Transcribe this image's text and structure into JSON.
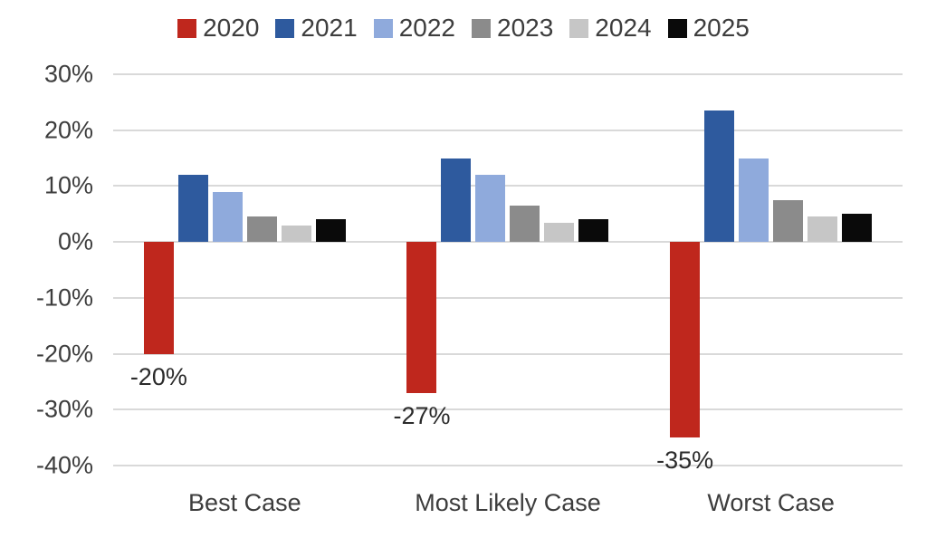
{
  "chart_data": {
    "type": "bar",
    "title": "",
    "categories": [
      "Best Case",
      "Most Likely Case",
      "Worst Case"
    ],
    "series": [
      {
        "name": "2020",
        "color": "#bf271d",
        "values": [
          -20,
          -27,
          -35
        ],
        "data_labels": [
          "-20%",
          "-27%",
          "-35%"
        ]
      },
      {
        "name": "2021",
        "color": "#2e5a9e",
        "values": [
          12,
          15,
          23.5
        ],
        "data_labels": null
      },
      {
        "name": "2022",
        "color": "#8faadc",
        "values": [
          9,
          12,
          15
        ],
        "data_labels": null
      },
      {
        "name": "2023",
        "color": "#8b8b8b",
        "values": [
          4.5,
          6.5,
          7.5
        ],
        "data_labels": null
      },
      {
        "name": "2024",
        "color": "#c6c6c6",
        "values": [
          3,
          3.5,
          4.5
        ],
        "data_labels": null
      },
      {
        "name": "2025",
        "color": "#0a0a0a",
        "values": [
          4,
          4,
          5
        ],
        "data_labels": null
      }
    ],
    "xlabel": "",
    "ylabel": "",
    "y_axis": {
      "tick_labels": [
        "30%",
        "20%",
        "10%",
        "0%",
        "-10%",
        "-20%",
        "-30%",
        "-40%"
      ],
      "tick_values": [
        30,
        20,
        10,
        0,
        -10,
        -20,
        -30,
        -40
      ],
      "max": 30,
      "min": -40
    },
    "grid": true,
    "legend_position": "top",
    "colors": {
      "gridline": "#d9d9d9",
      "axis_text": "#3d3d3d",
      "data_label_text": "#2b2b2b",
      "background": "#ffffff"
    }
  }
}
